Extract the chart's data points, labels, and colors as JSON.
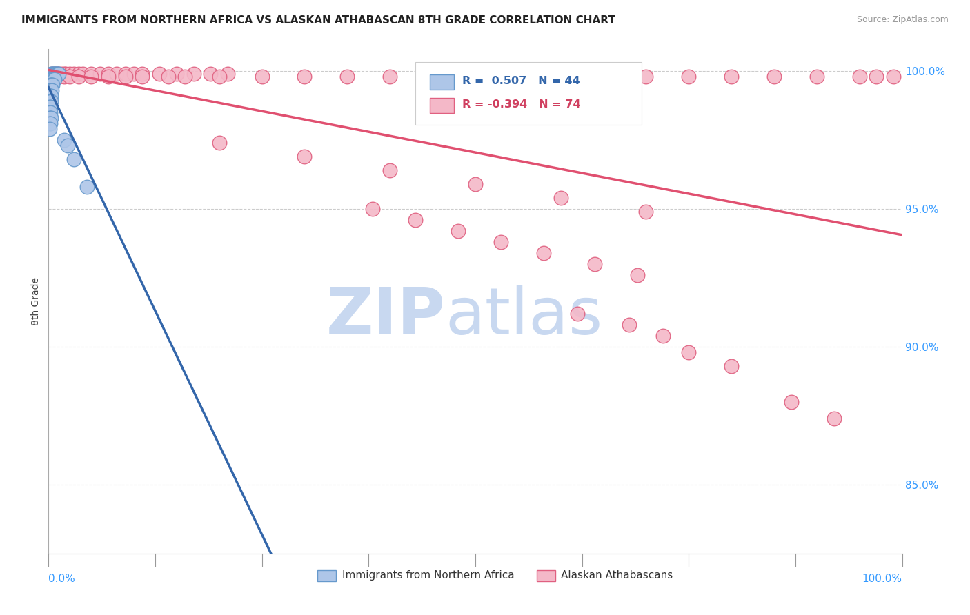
{
  "title": "IMMIGRANTS FROM NORTHERN AFRICA VS ALASKAN ATHABASCAN 8TH GRADE CORRELATION CHART",
  "source": "Source: ZipAtlas.com",
  "ylabel": "8th Grade",
  "right_yticks": [
    1.0,
    0.95,
    0.9,
    0.85
  ],
  "right_ytick_labels": [
    "100.0%",
    "95.0%",
    "90.0%",
    "85.0%"
  ],
  "xlim": [
    0.0,
    1.0
  ],
  "ylim": [
    0.825,
    1.008
  ],
  "blue_R": 0.507,
  "blue_N": 44,
  "pink_R": -0.394,
  "pink_N": 74,
  "blue_fill": "#AEC6E8",
  "blue_edge": "#6699CC",
  "pink_fill": "#F4B8C8",
  "pink_edge": "#E06080",
  "blue_line": "#3366AA",
  "pink_line": "#E05070",
  "watermark_zip_color": "#C8D8F0",
  "watermark_atlas_color": "#C8D8F0",
  "grid_color": "#CCCCCC",
  "background": "#FFFFFF",
  "blue_scatter_x": [
    0.003,
    0.004,
    0.005,
    0.006,
    0.007,
    0.008,
    0.009,
    0.01,
    0.011,
    0.012,
    0.002,
    0.003,
    0.004,
    0.005,
    0.006,
    0.007,
    0.002,
    0.003,
    0.004,
    0.005,
    0.001,
    0.002,
    0.003,
    0.004,
    0.001,
    0.002,
    0.003,
    0.001,
    0.002,
    0.003,
    0.001,
    0.002,
    0.001,
    0.002,
    0.001,
    0.002,
    0.003,
    0.001,
    0.002,
    0.001,
    0.018,
    0.022,
    0.03,
    0.045
  ],
  "blue_scatter_y": [
    0.999,
    0.999,
    0.999,
    0.999,
    0.999,
    0.999,
    0.999,
    0.999,
    0.999,
    0.999,
    0.997,
    0.997,
    0.997,
    0.997,
    0.997,
    0.997,
    0.995,
    0.995,
    0.995,
    0.995,
    0.993,
    0.993,
    0.993,
    0.993,
    0.991,
    0.991,
    0.991,
    0.989,
    0.989,
    0.989,
    0.987,
    0.987,
    0.985,
    0.985,
    0.983,
    0.983,
    0.983,
    0.981,
    0.981,
    0.979,
    0.975,
    0.973,
    0.968,
    0.958
  ],
  "pink_scatter_x": [
    0.004,
    0.006,
    0.008,
    0.01,
    0.012,
    0.015,
    0.018,
    0.02,
    0.025,
    0.03,
    0.035,
    0.04,
    0.05,
    0.06,
    0.07,
    0.08,
    0.09,
    0.1,
    0.11,
    0.13,
    0.15,
    0.17,
    0.19,
    0.21,
    0.005,
    0.008,
    0.012,
    0.018,
    0.025,
    0.035,
    0.05,
    0.07,
    0.09,
    0.11,
    0.14,
    0.16,
    0.2,
    0.25,
    0.3,
    0.35,
    0.4,
    0.45,
    0.5,
    0.55,
    0.6,
    0.65,
    0.7,
    0.75,
    0.8,
    0.85,
    0.9,
    0.95,
    0.97,
    0.99,
    0.2,
    0.3,
    0.4,
    0.5,
    0.6,
    0.7,
    0.38,
    0.43,
    0.48,
    0.53,
    0.58,
    0.64,
    0.69,
    0.62,
    0.68,
    0.72,
    0.75,
    0.8,
    0.87,
    0.92
  ],
  "pink_scatter_y": [
    0.999,
    0.999,
    0.999,
    0.999,
    0.999,
    0.999,
    0.999,
    0.999,
    0.999,
    0.999,
    0.999,
    0.999,
    0.999,
    0.999,
    0.999,
    0.999,
    0.999,
    0.999,
    0.999,
    0.999,
    0.999,
    0.999,
    0.999,
    0.999,
    0.998,
    0.998,
    0.998,
    0.998,
    0.998,
    0.998,
    0.998,
    0.998,
    0.998,
    0.998,
    0.998,
    0.998,
    0.998,
    0.998,
    0.998,
    0.998,
    0.998,
    0.998,
    0.998,
    0.998,
    0.998,
    0.998,
    0.998,
    0.998,
    0.998,
    0.998,
    0.998,
    0.998,
    0.998,
    0.998,
    0.974,
    0.969,
    0.964,
    0.959,
    0.954,
    0.949,
    0.95,
    0.946,
    0.942,
    0.938,
    0.934,
    0.93,
    0.926,
    0.912,
    0.908,
    0.904,
    0.898,
    0.893,
    0.88,
    0.874
  ]
}
